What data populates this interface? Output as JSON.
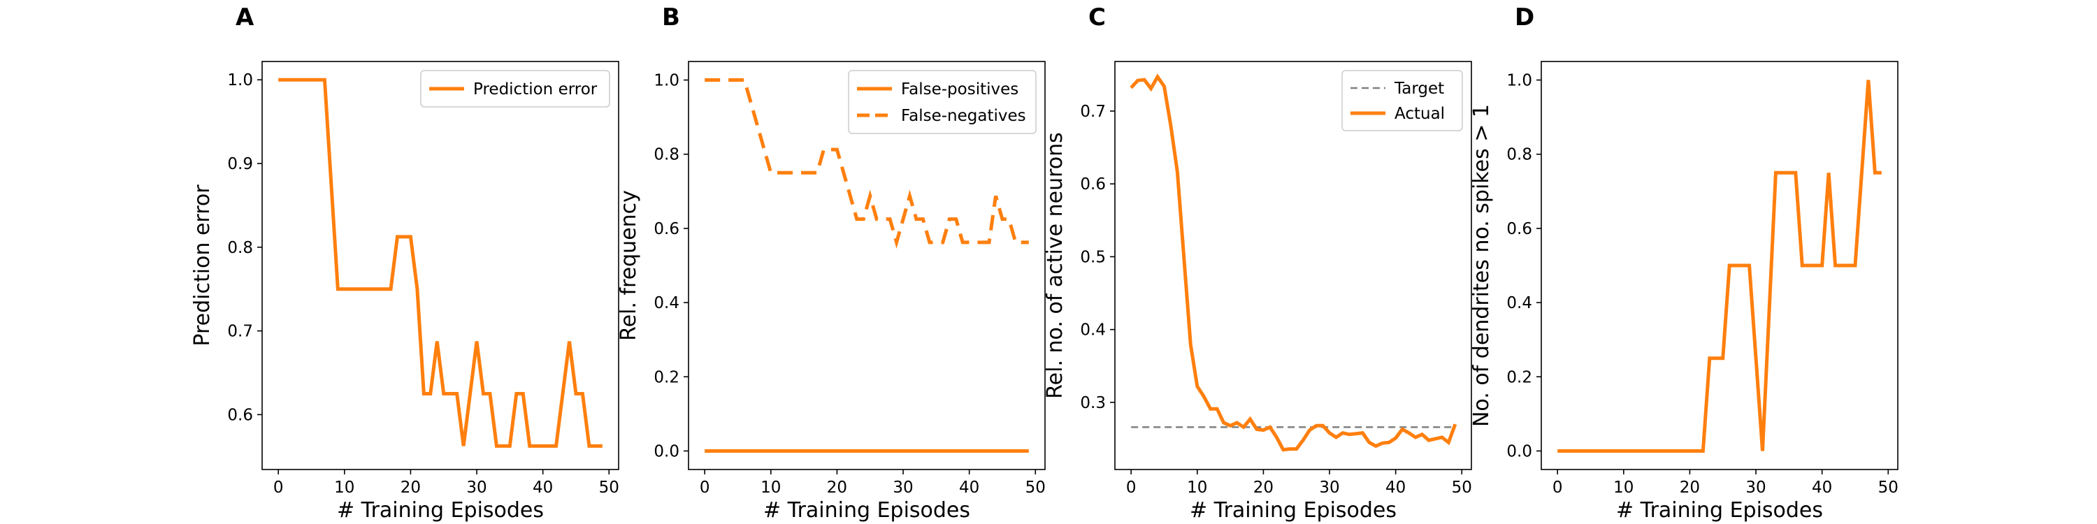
{
  "colors": {
    "series": "#ff7f0e",
    "target": "#808080",
    "axis": "#000000"
  },
  "chart_data": [
    {
      "panel": "A",
      "type": "line",
      "xlabel": "# Training Episodes",
      "ylabel": "Prediction error",
      "xlim": [
        -2.45,
        51.45
      ],
      "ylim": [
        0.5344,
        1.0219
      ],
      "xticks": [
        0,
        10,
        20,
        30,
        40,
        50
      ],
      "yticks": [
        0.6,
        0.7,
        0.8,
        0.9,
        1.0
      ],
      "ytick_labels": [
        "0.6",
        "0.7",
        "0.8",
        "0.9",
        "1.0"
      ],
      "legend": {
        "position": "upper right"
      },
      "series": [
        {
          "name": "Prediction error",
          "style": "solid",
          "x": [
            0,
            1,
            2,
            3,
            4,
            5,
            6,
            7,
            8,
            9,
            10,
            11,
            12,
            13,
            14,
            15,
            16,
            17,
            18,
            19,
            20,
            21,
            22,
            23,
            24,
            25,
            26,
            27,
            28,
            29,
            30,
            31,
            32,
            33,
            34,
            35,
            36,
            37,
            38,
            39,
            40,
            41,
            42,
            43,
            44,
            45,
            46,
            47,
            48,
            49
          ],
          "y": [
            1.0,
            1.0,
            1.0,
            1.0,
            1.0,
            1.0,
            1.0,
            1.0,
            0.875,
            0.75,
            0.75,
            0.75,
            0.75,
            0.75,
            0.75,
            0.75,
            0.75,
            0.75,
            0.8125,
            0.8125,
            0.8125,
            0.75,
            0.625,
            0.625,
            0.6875,
            0.625,
            0.625,
            0.625,
            0.5625,
            0.625,
            0.6875,
            0.625,
            0.625,
            0.5625,
            0.5625,
            0.5625,
            0.625,
            0.625,
            0.5625,
            0.5625,
            0.5625,
            0.5625,
            0.5625,
            0.625,
            0.6875,
            0.625,
            0.625,
            0.5625,
            0.5625,
            0.5625
          ]
        }
      ]
    },
    {
      "panel": "B",
      "type": "line",
      "xlabel": "# Training Episodes",
      "ylabel": "Rel. frequency",
      "xlim": [
        -2.45,
        51.45
      ],
      "ylim": [
        -0.05,
        1.05
      ],
      "xticks": [
        0,
        10,
        20,
        30,
        40,
        50
      ],
      "yticks": [
        0.0,
        0.2,
        0.4,
        0.6,
        0.8,
        1.0
      ],
      "ytick_labels": [
        "0.0",
        "0.2",
        "0.4",
        "0.6",
        "0.8",
        "1.0"
      ],
      "legend": {
        "position": "upper right"
      },
      "series": [
        {
          "name": "False-positives",
          "style": "solid",
          "x": [
            0,
            1,
            2,
            3,
            4,
            5,
            6,
            7,
            8,
            9,
            10,
            11,
            12,
            13,
            14,
            15,
            16,
            17,
            18,
            19,
            20,
            21,
            22,
            23,
            24,
            25,
            26,
            27,
            28,
            29,
            30,
            31,
            32,
            33,
            34,
            35,
            36,
            37,
            38,
            39,
            40,
            41,
            42,
            43,
            44,
            45,
            46,
            47,
            48,
            49
          ],
          "y": [
            0,
            0,
            0,
            0,
            0,
            0,
            0,
            0,
            0,
            0,
            0,
            0,
            0,
            0,
            0,
            0,
            0,
            0,
            0,
            0,
            0,
            0,
            0,
            0,
            0,
            0,
            0,
            0,
            0,
            0,
            0,
            0,
            0,
            0,
            0,
            0,
            0,
            0,
            0,
            0,
            0,
            0,
            0,
            0,
            0,
            0,
            0,
            0,
            0,
            0
          ]
        },
        {
          "name": "False-negatives",
          "style": "dashed",
          "x": [
            0,
            1,
            2,
            3,
            4,
            5,
            6,
            7,
            8,
            9,
            10,
            11,
            12,
            13,
            14,
            15,
            16,
            17,
            18,
            19,
            20,
            21,
            22,
            23,
            24,
            25,
            26,
            27,
            28,
            29,
            30,
            31,
            32,
            33,
            34,
            35,
            36,
            37,
            38,
            39,
            40,
            41,
            42,
            43,
            44,
            45,
            46,
            47,
            48,
            49
          ],
          "y": [
            1.0,
            1.0,
            1.0,
            1.0,
            1.0,
            1.0,
            1.0,
            0.9375,
            0.875,
            0.8125,
            0.75,
            0.75,
            0.75,
            0.75,
            0.75,
            0.75,
            0.75,
            0.75,
            0.8125,
            0.8125,
            0.8125,
            0.75,
            0.6875,
            0.625,
            0.625,
            0.6875,
            0.625,
            0.625,
            0.625,
            0.5625,
            0.625,
            0.6875,
            0.625,
            0.625,
            0.5625,
            0.5625,
            0.5625,
            0.625,
            0.625,
            0.5625,
            0.5625,
            0.5625,
            0.5625,
            0.5625,
            0.6875,
            0.625,
            0.625,
            0.5625,
            0.5625,
            0.5625
          ]
        }
      ]
    },
    {
      "panel": "C",
      "type": "line",
      "xlabel": "# Training Episodes",
      "ylabel": "Rel. no. of active neurons",
      "xlim": [
        -2.45,
        51.45
      ],
      "ylim": [
        0.2078,
        0.7681
      ],
      "xticks": [
        0,
        10,
        20,
        30,
        40,
        50
      ],
      "yticks": [
        0.3,
        0.4,
        0.5,
        0.6,
        0.7
      ],
      "ytick_labels": [
        "0.3",
        "0.4",
        "0.5",
        "0.6",
        "0.7"
      ],
      "legend": {
        "position": "upper right"
      },
      "series": [
        {
          "name": "Target",
          "style": "dashed",
          "x": [
            0,
            49
          ],
          "y": [
            0.266,
            0.266
          ]
        },
        {
          "name": "Actual",
          "style": "solid",
          "x": [
            0,
            1,
            2,
            3,
            4,
            5,
            6,
            7,
            8,
            9,
            10,
            11,
            12,
            13,
            14,
            15,
            16,
            17,
            18,
            19,
            20,
            21,
            22,
            23,
            24,
            25,
            26,
            27,
            28,
            29,
            30,
            31,
            32,
            33,
            34,
            35,
            36,
            37,
            38,
            39,
            40,
            41,
            42,
            43,
            44,
            45,
            46,
            47,
            48,
            49
          ],
          "y": [
            0.732,
            0.742,
            0.743,
            0.731,
            0.747,
            0.734,
            0.68,
            0.616,
            0.497,
            0.379,
            0.322,
            0.308,
            0.291,
            0.291,
            0.272,
            0.268,
            0.272,
            0.266,
            0.277,
            0.263,
            0.262,
            0.266,
            0.252,
            0.235,
            0.236,
            0.236,
            0.248,
            0.262,
            0.268,
            0.268,
            0.258,
            0.252,
            0.258,
            0.256,
            0.257,
            0.258,
            0.245,
            0.24,
            0.244,
            0.245,
            0.251,
            0.263,
            0.258,
            0.252,
            0.256,
            0.248,
            0.25,
            0.252,
            0.245,
            0.27
          ]
        }
      ]
    },
    {
      "panel": "D",
      "type": "line",
      "xlabel": "# Training Episodes",
      "ylabel": "No. of dendrites no. spikes > 1",
      "xlim": [
        -2.45,
        51.45
      ],
      "ylim": [
        -0.05,
        1.05
      ],
      "xticks": [
        0,
        10,
        20,
        30,
        40,
        50
      ],
      "yticks": [
        0.0,
        0.2,
        0.4,
        0.6,
        0.8,
        1.0
      ],
      "ytick_labels": [
        "0.0",
        "0.2",
        "0.4",
        "0.6",
        "0.8",
        "1.0"
      ],
      "legend": null,
      "series": [
        {
          "style": "solid",
          "x": [
            0,
            1,
            2,
            3,
            4,
            5,
            6,
            7,
            8,
            9,
            10,
            11,
            12,
            13,
            14,
            15,
            16,
            17,
            18,
            19,
            20,
            21,
            22,
            23,
            24,
            25,
            26,
            27,
            28,
            29,
            30,
            31,
            32,
            33,
            34,
            35,
            36,
            37,
            38,
            39,
            40,
            41,
            42,
            43,
            44,
            45,
            46,
            47,
            48,
            49
          ],
          "y": [
            0,
            0,
            0,
            0,
            0,
            0,
            0,
            0,
            0,
            0,
            0,
            0,
            0,
            0,
            0,
            0,
            0,
            0,
            0,
            0,
            0,
            0,
            0,
            0.25,
            0.25,
            0.25,
            0.5,
            0.5,
            0.5,
            0.5,
            0.25,
            0,
            0.375,
            0.75,
            0.75,
            0.75,
            0.75,
            0.5,
            0.5,
            0.5,
            0.5,
            0.75,
            0.5,
            0.5,
            0.5,
            0.5,
            0.75,
            1.0,
            0.75,
            0.75
          ]
        }
      ]
    }
  ]
}
